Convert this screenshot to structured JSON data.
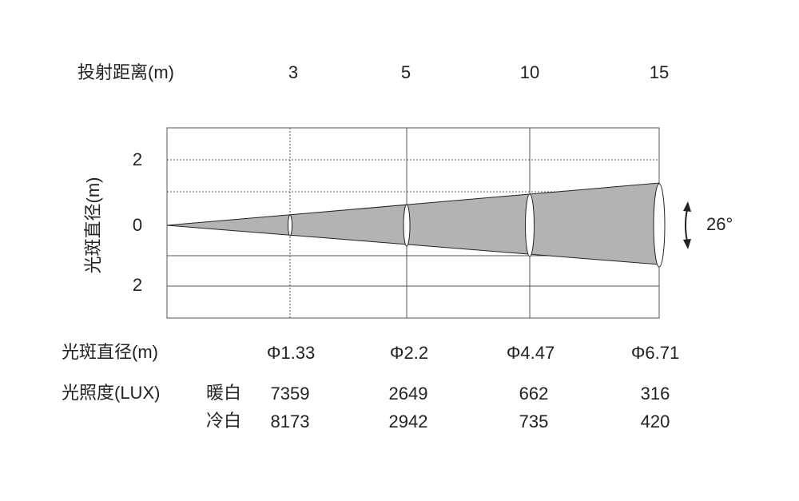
{
  "distance_label": "投射距离(m)",
  "distances": [
    "3",
    "5",
    "10",
    "15"
  ],
  "y_axis_label": "光斑直径(m)",
  "y_ticks": [
    "2",
    "0",
    "2"
  ],
  "beam_angle": "26°",
  "spot_diameter_label": "光斑直径(m)",
  "spot_diameters": [
    "Φ1.33",
    "Φ2.2",
    "Φ4.47",
    "Φ6.71"
  ],
  "illuminance_label": "光照度(LUX)",
  "illuminance_rows": [
    {
      "name": "暖白",
      "values": [
        "7359",
        "2649",
        "662",
        "316"
      ]
    },
    {
      "name": "冷白",
      "values": [
        "8173",
        "2942",
        "735",
        "420"
      ]
    }
  ]
}
